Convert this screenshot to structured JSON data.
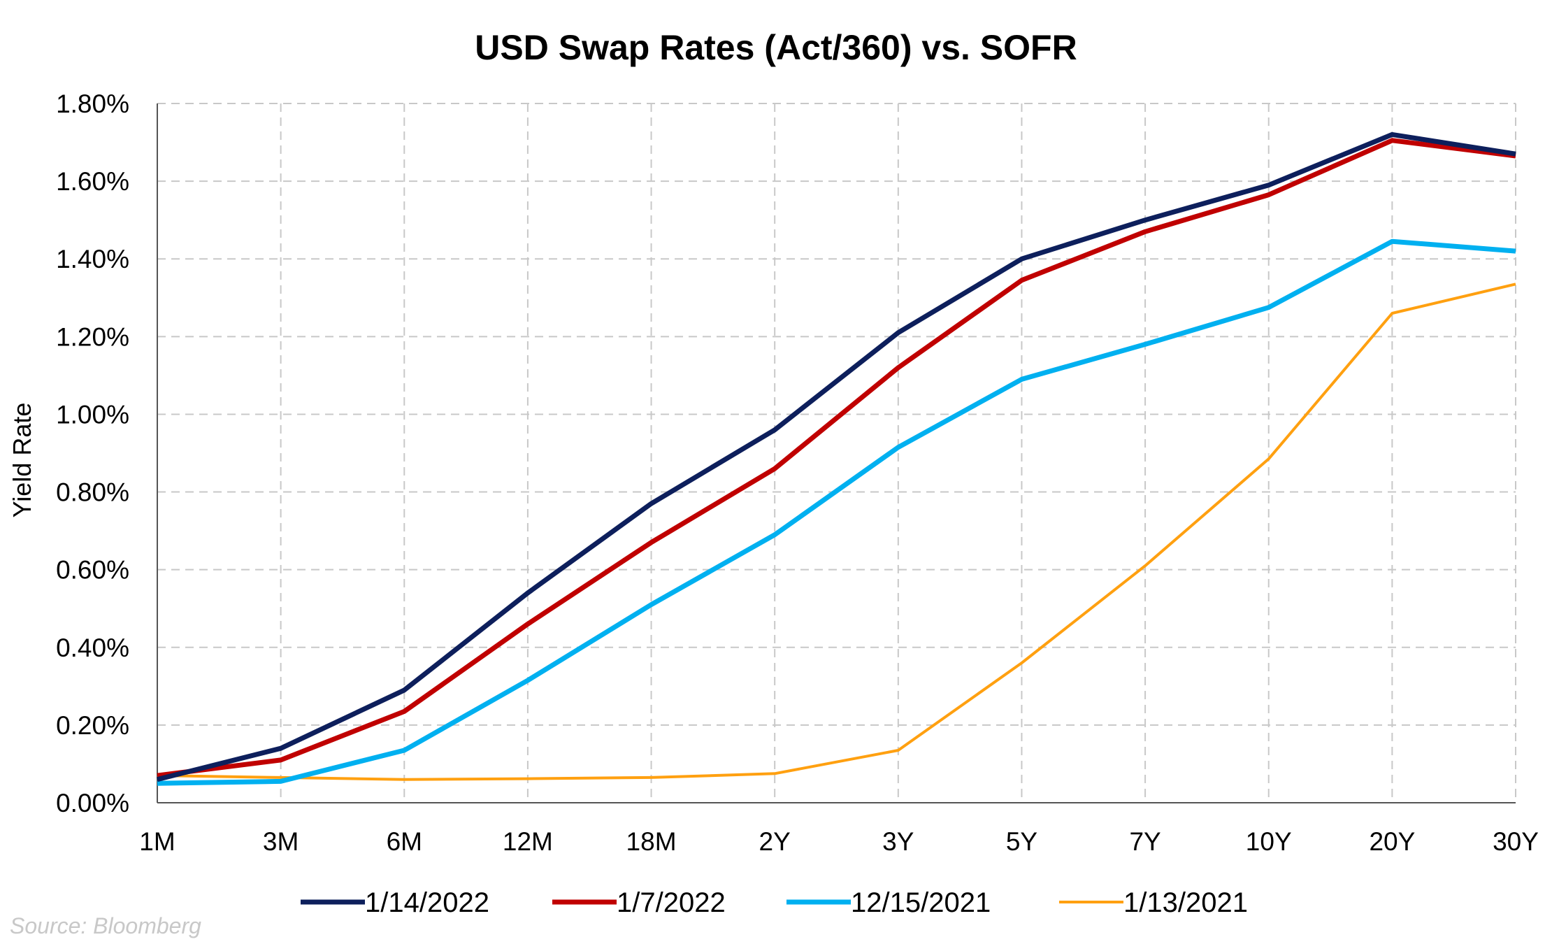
{
  "chart_data": {
    "type": "line",
    "title": "USD Swap Rates (Act/360) vs. SOFR",
    "xlabel": "",
    "ylabel": "Yield Rate",
    "categories": [
      "1M",
      "3M",
      "6M",
      "12M",
      "18M",
      "2Y",
      "3Y",
      "5Y",
      "7Y",
      "10Y",
      "20Y",
      "30Y"
    ],
    "ylim": [
      0,
      1.8
    ],
    "yticks": [
      0,
      0.2,
      0.4,
      0.6,
      0.8,
      1.0,
      1.2,
      1.4,
      1.6,
      1.8
    ],
    "ytick_labels": [
      "0.00%",
      "0.20%",
      "0.40%",
      "0.60%",
      "0.80%",
      "1.00%",
      "1.20%",
      "1.40%",
      "1.60%",
      "1.80%"
    ],
    "grid": true,
    "legend_position": "bottom",
    "series": [
      {
        "name": "1/14/2022",
        "color": "#0d1f5c",
        "values": [
          0.06,
          0.14,
          0.29,
          0.54,
          0.77,
          0.96,
          1.21,
          1.4,
          1.5,
          1.59,
          1.72,
          1.67
        ]
      },
      {
        "name": "1/7/2022",
        "color": "#c00000",
        "values": [
          0.07,
          0.11,
          0.235,
          0.46,
          0.67,
          0.86,
          1.12,
          1.345,
          1.47,
          1.565,
          1.705,
          1.665
        ]
      },
      {
        "name": "12/15/2021",
        "color": "#00b0f0",
        "values": [
          0.05,
          0.055,
          0.135,
          0.315,
          0.51,
          0.69,
          0.915,
          1.09,
          1.18,
          1.275,
          1.445,
          1.42
        ]
      },
      {
        "name": "1/13/2021",
        "color": "#ffa010",
        "values": [
          0.07,
          0.065,
          0.06,
          0.062,
          0.065,
          0.075,
          0.135,
          0.36,
          0.61,
          0.885,
          1.26,
          1.335
        ]
      }
    ]
  },
  "footer": {
    "source": "Source: Bloomberg"
  }
}
